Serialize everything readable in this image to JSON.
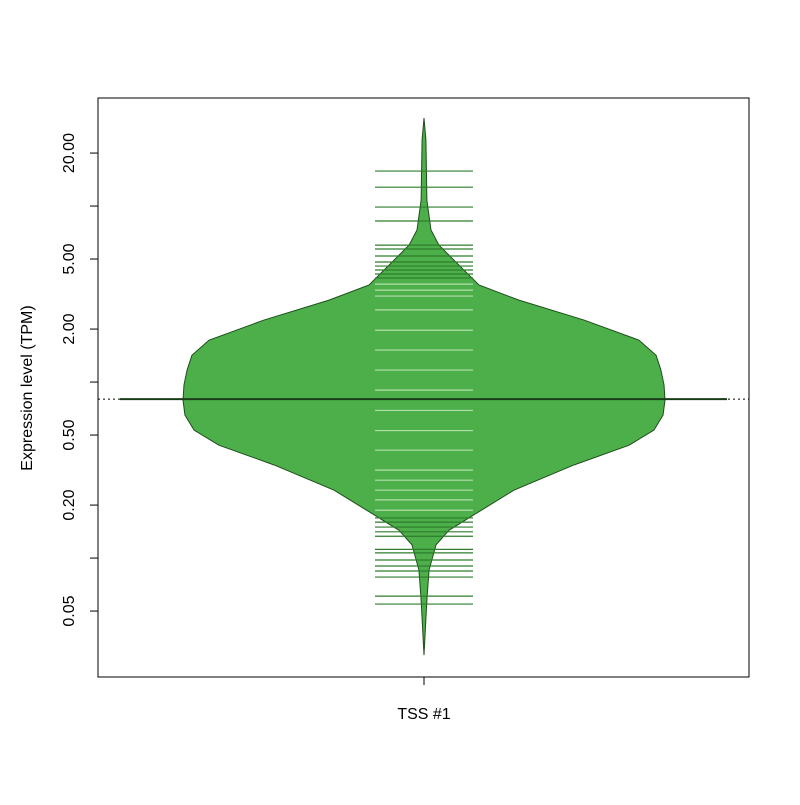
{
  "chart_data": {
    "type": "beanplot",
    "ylabel": "Expression level (TPM)",
    "categories": [
      "TSS #1"
    ],
    "ylog": true,
    "ylim": [
      0.0211,
      41.1
    ],
    "yticks": [
      {
        "value": 0.05,
        "label": "0.05"
      },
      {
        "value": 0.2,
        "label": "0.20"
      },
      {
        "value": 0.5,
        "label": "0.50"
      },
      {
        "value": 2,
        "label": "2.00"
      },
      {
        "value": 5,
        "label": "5.00"
      },
      {
        "value": 20,
        "label": "20.00"
      }
    ],
    "yticks_minor": [
      0.1,
      1,
      10
    ],
    "color": "#4daf4a",
    "border_color": "#1e4d1c",
    "line_color_inside": "#b3deac",
    "line_color_outside": "#2f7d2c",
    "median": 0.8,
    "overall_line": 0.8,
    "density": {
      "y": [
        31.6,
        23.7,
        10.8,
        7.31,
        6.0,
        4.93,
        3.56,
        2.92,
        2.25,
        1.73,
        1.42,
        1.17,
        0.962,
        0.79,
        0.649,
        0.533,
        0.438,
        0.338,
        0.243,
        0.176,
        0.144,
        0.119,
        0.0855,
        0.0577,
        0.0281
      ],
      "width": [
        0,
        0.008,
        0.012,
        0.029,
        0.062,
        0.124,
        0.228,
        0.394,
        0.664,
        0.892,
        0.963,
        0.983,
        0.996,
        1,
        0.992,
        0.954,
        0.851,
        0.622,
        0.373,
        0.207,
        0.104,
        0.05,
        0.021,
        0.012,
        0
      ]
    },
    "observations": [
      15.8,
      12.8,
      9.87,
      8.22,
      6.0,
      5.7,
      5.2,
      4.81,
      4.56,
      4.33,
      4.11,
      3.9,
      3.6,
      3.33,
      3.08,
      2.57,
      1.97,
      1.52,
      1.17,
      0.9,
      0.69,
      0.53,
      0.41,
      0.316,
      0.277,
      0.243,
      0.214,
      0.187,
      0.169,
      0.16,
      0.15,
      0.141,
      0.133,
      0.112,
      0.107,
      0.0975,
      0.0901,
      0.0844,
      0.078,
      0.0608,
      0.0548
    ]
  }
}
